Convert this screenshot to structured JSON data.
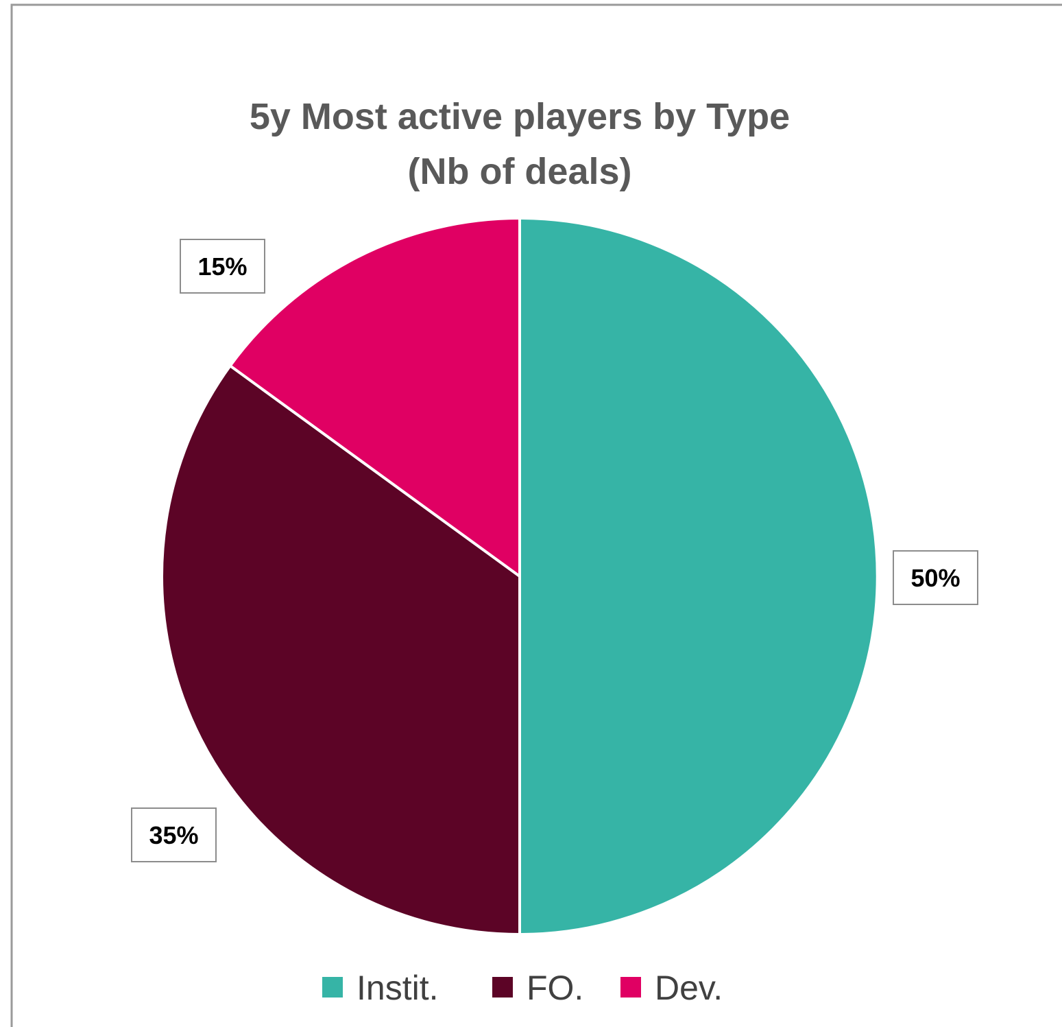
{
  "chart_data": {
    "type": "pie",
    "title_lines": [
      "5y Most active players by Type",
      "(Nb of deals)"
    ],
    "categories": [
      "Instit.",
      "FO.",
      "Dev."
    ],
    "values": [
      50,
      35,
      15
    ],
    "data_labels": [
      "50%",
      "35%",
      "15%"
    ],
    "colors": [
      "#36b4a6",
      "#5c0426",
      "#e00063"
    ],
    "legend_position": "bottom",
    "start_angle": "12 o'clock",
    "direction": "clockwise"
  }
}
